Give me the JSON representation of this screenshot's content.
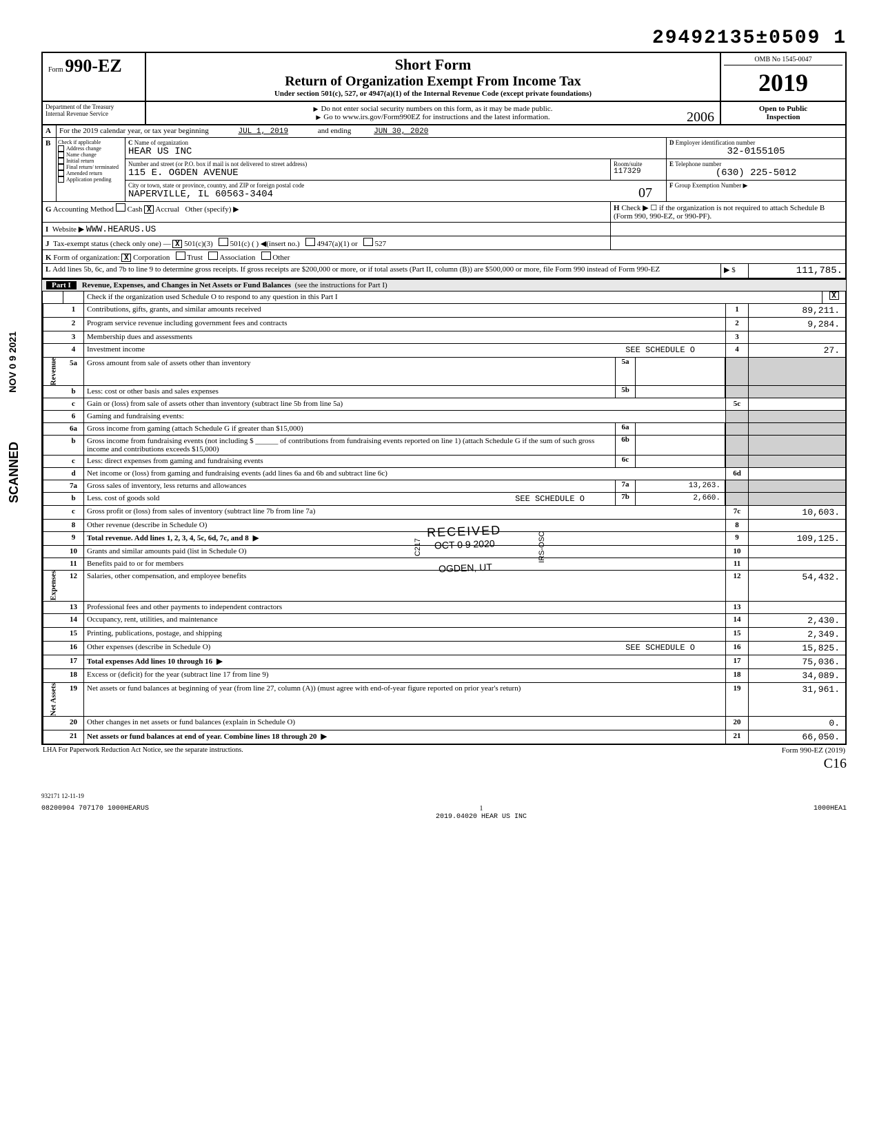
{
  "doc_number": "29492135±0509  1",
  "form": {
    "prefix": "Form",
    "number": "990-EZ"
  },
  "title": {
    "line1": "Short Form",
    "line2": "Return of Organization Exempt From Income Tax",
    "section": "Under section 501(c), 527, or 4947(a)(1) of the Internal Revenue Code (except private foundations)",
    "warn": "Do not enter social security numbers on this form, as it may be made public.",
    "goto": "Go to www.irs.gov/Form990EZ for instructions and the latest information."
  },
  "omb": "OMB No 1545-0047",
  "year": "2019",
  "dept": {
    "l1": "Department of the Treasury",
    "l2": "Internal Revenue Service"
  },
  "open": {
    "l1": "Open to Public",
    "l2": "Inspection"
  },
  "handwritten_year": "2006",
  "A": {
    "label": "For the 2019 calendar year, or tax year beginning",
    "begin": "JUL 1, 2019",
    "ending_label": "and ending",
    "end": "JUN 30, 2020"
  },
  "B": {
    "label": "Check if applicable",
    "opts": [
      "Address change",
      "Name change",
      "Initial return",
      "Final return/ terminated",
      "Amended return",
      "Application pending"
    ]
  },
  "C": {
    "label": "Name of organization",
    "name": "HEAR US INC",
    "addr_label": "Number and street (or P.O. box if mail is not delivered to street address)",
    "addr": "115 E. OGDEN AVENUE",
    "room_label": "Room/suite",
    "room": "117329",
    "city_label": "City or town, state or province, country, and ZIP or foreign postal code",
    "city": "NAPERVILLE, IL  60563-3404"
  },
  "D": {
    "label": "Employer identification number",
    "val": "32-0155105"
  },
  "E": {
    "label": "Telephone number",
    "val": "(630) 225-5012"
  },
  "F": {
    "label": "Group Exemption Number ▶",
    "val": ""
  },
  "G": {
    "label": "Accounting Method",
    "cash": "Cash",
    "accrual": "Accrual",
    "other": "Other (specify) ▶",
    "checked": "X"
  },
  "H": {
    "text": "Check ▶ ☐ if the organization is not required to attach Schedule B (Form 990, 990-EZ, or 990-PF)."
  },
  "I": {
    "label": "Website ▶",
    "val": "WWW.HEARUS.US"
  },
  "J": {
    "label": "Tax-exempt status (check only one) —",
    "v": "X",
    "opts": [
      "501(c)(3)",
      "501(c) (    ) ◀(insert no.)",
      "4947(a)(1) or",
      "527"
    ]
  },
  "K": {
    "label": "Form of organization:",
    "v": "X",
    "opts": [
      "Corporation",
      "Trust",
      "Association",
      "Other"
    ]
  },
  "L": {
    "text": "Add lines 5b, 6c, and 7b to line 9 to determine gross receipts. If gross receipts are $200,000 or more, or if total assets (Part II, column (B)) are $500,000 or more, file Form 990 instead of Form 990-EZ",
    "arrow": "▶ $",
    "val": "111,785."
  },
  "part1": {
    "label": "Part I",
    "title": "Revenue, Expenses, and Changes in Net Assets or Fund Balances",
    "instr": "(see the instructions for Part I)",
    "check": "Check if the organization used Schedule O to respond to any question in this Part I",
    "x": "X"
  },
  "lines": {
    "1": {
      "d": "Contributions, gifts, grants, and similar amounts received",
      "v": "89,211."
    },
    "2": {
      "d": "Program service revenue including government fees and contracts",
      "v": "9,284."
    },
    "3": {
      "d": "Membership dues and assessments",
      "v": ""
    },
    "4": {
      "d": "Investment income",
      "note": "SEE SCHEDULE O",
      "v": "27."
    },
    "5a": {
      "d": "Gross amount from sale of assets other than inventory",
      "m": ""
    },
    "5b": {
      "d": "Less: cost or other basis and sales expenses",
      "m": ""
    },
    "5c": {
      "d": "Gain or (loss) from sale of assets other than inventory (subtract line 5b from line 5a)",
      "v": ""
    },
    "6": {
      "d": "Gaming and fundraising events:"
    },
    "6a": {
      "d": "Gross income from gaming (attach Schedule G if greater than $15,000)",
      "m": ""
    },
    "6b": {
      "d": "Gross income from fundraising events (not including $ ______ of contributions from fundraising events reported on line 1) (attach Schedule G if the sum of such gross income and contributions exceeds $15,000)",
      "m": ""
    },
    "6c": {
      "d": "Less: direct expenses from gaming and fundraising events",
      "m": ""
    },
    "6d": {
      "d": "Net income or (loss) from gaming and fundraising events (add lines 6a and 6b and subtract line 6c)",
      "v": ""
    },
    "7a": {
      "d": "Gross sales of inventory, less returns and allowances",
      "m": "13,263."
    },
    "7b": {
      "d": "Less. cost of goods sold",
      "note": "SEE SCHEDULE O",
      "m": "2,660."
    },
    "7c": {
      "d": "Gross profit or (loss) from sales of inventory (subtract line 7b from line 7a)",
      "v": "10,603."
    },
    "8": {
      "d": "Other revenue (describe in Schedule O)",
      "v": ""
    },
    "9": {
      "d": "Total revenue. Add lines 1, 2, 3, 4, 5c, 6d, 7c, and 8",
      "arrow": "▶",
      "v": "109,125."
    },
    "10": {
      "d": "Grants and similar amounts paid (list in Schedule O)",
      "v": ""
    },
    "11": {
      "d": "Benefits paid to or for members",
      "v": ""
    },
    "12": {
      "d": "Salaries, other compensation, and employee benefits",
      "v": "54,432."
    },
    "13": {
      "d": "Professional fees and other payments to independent contractors",
      "v": ""
    },
    "14": {
      "d": "Occupancy, rent, utilities, and maintenance",
      "v": "2,430."
    },
    "15": {
      "d": "Printing, publications, postage, and shipping",
      "v": "2,349."
    },
    "16": {
      "d": "Other expenses (describe in Schedule O)",
      "note": "SEE SCHEDULE O",
      "v": "15,825."
    },
    "17": {
      "d": "Total expenses  Add lines 10 through 16",
      "arrow": "▶",
      "v": "75,036."
    },
    "18": {
      "d": "Excess or (deficit) for the year (subtract line 17 from line 9)",
      "v": "34,089."
    },
    "19": {
      "d": "Net assets or fund balances at beginning of year (from line 27, column (A)) (must agree with end-of-year figure reported on prior year's return)",
      "v": "31,961."
    },
    "20": {
      "d": "Other changes in net assets or fund balances (explain in Schedule O)",
      "v": "0."
    },
    "21": {
      "d": "Net assets or fund balances at end of year. Combine lines 18 through 20",
      "arrow": "▶",
      "v": "66,050."
    }
  },
  "side_labels": {
    "rev": "Revenue",
    "exp": "Expenses",
    "net": "Net Assets"
  },
  "vert_stamp": {
    "scanned": "SCANNED",
    "date": "NOV 0 9 2021"
  },
  "received_stamp": {
    "l1": "RECEIVED",
    "l2": "OCT 0 9 2020",
    "l3": "OGDEN, UT",
    "side1": "C217",
    "side2": "IRS-OSC"
  },
  "handwritten_bottom1": "07",
  "handwritten_bottom2": "C16",
  "lha": "LHA  For Paperwork Reduction Act Notice, see the separate instructions.",
  "form_foot": "Form 990-EZ (2019)",
  "rev_foot": "932171 12-11-19",
  "page_foot": {
    "left": "08200904 707170 1000HEARUS",
    "mid": "1",
    "mid2": "2019.04020 HEAR US INC",
    "right": "1000HEA1"
  },
  "colors": {
    "bg": "#ffffff",
    "text": "#000000",
    "shade": "#d0d0d0",
    "header_shade": "#e8e8e8"
  }
}
